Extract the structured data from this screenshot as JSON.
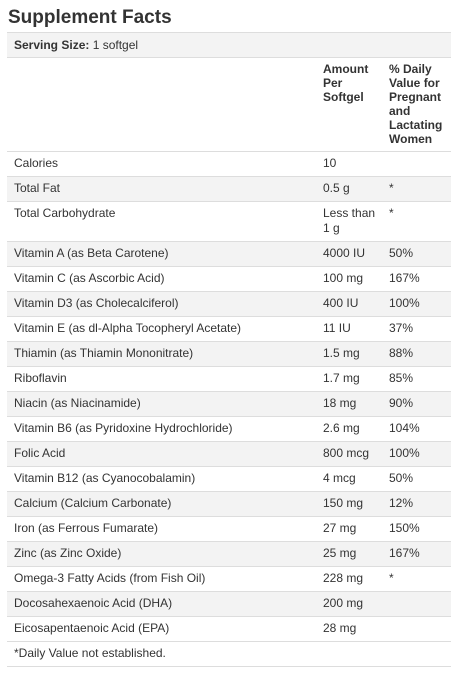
{
  "title": "Supplement Facts",
  "serving": {
    "label": "Serving Size:",
    "value": "1 softgel"
  },
  "header": {
    "amount": [
      "Amount",
      "Per",
      "Softgel"
    ],
    "dv": [
      "% Daily",
      "Value for",
      "Pregnant",
      "and",
      "Lactating",
      "Women"
    ]
  },
  "rows": [
    {
      "name": "Calories",
      "amount": "10",
      "dv": ""
    },
    {
      "name": "Total Fat",
      "amount": "0.5 g",
      "dv": "*"
    },
    {
      "name": "Total Carbohydrate",
      "amount": "Less than 1 g",
      "dv": "*"
    },
    {
      "name": "Vitamin A (as Beta Carotene)",
      "amount": "4000 IU",
      "dv": "50%"
    },
    {
      "name": "Vitamin C (as Ascorbic Acid)",
      "amount": "100 mg",
      "dv": "167%"
    },
    {
      "name": "Vitamin D3 (as Cholecalciferol)",
      "amount": "400 IU",
      "dv": "100%"
    },
    {
      "name": "Vitamin E (as dl-Alpha Tocopheryl Acetate)",
      "amount": "11 IU",
      "dv": "37%"
    },
    {
      "name": "Thiamin (as Thiamin Mononitrate)",
      "amount": "1.5 mg",
      "dv": "88%"
    },
    {
      "name": "Riboflavin",
      "amount": "1.7 mg",
      "dv": "85%"
    },
    {
      "name": "Niacin (as Niacinamide)",
      "amount": "18 mg",
      "dv": "90%"
    },
    {
      "name": "Vitamin B6 (as Pyridoxine Hydrochloride)",
      "amount": "2.6 mg",
      "dv": "104%"
    },
    {
      "name": "Folic Acid",
      "amount": "800 mcg",
      "dv": "100%"
    },
    {
      "name": "Vitamin B12 (as Cyanocobalamin)",
      "amount": "4 mcg",
      "dv": "50%"
    },
    {
      "name": "Calcium (Calcium Carbonate)",
      "amount": "150 mg",
      "dv": "12%"
    },
    {
      "name": "Iron (as Ferrous Fumarate)",
      "amount": "27 mg",
      "dv": "150%"
    },
    {
      "name": "Zinc (as Zinc Oxide)",
      "amount": "25 mg",
      "dv": "167%"
    },
    {
      "name": "Omega-3 Fatty Acids (from Fish Oil)",
      "amount": "228 mg",
      "dv": "*"
    },
    {
      "name": "Docosahexaenoic Acid (DHA)",
      "amount": "200 mg",
      "dv": ""
    },
    {
      "name": "Eicosapentaenoic Acid (EPA)",
      "amount": "28 mg",
      "dv": ""
    }
  ],
  "footnote": "*Daily Value not established."
}
